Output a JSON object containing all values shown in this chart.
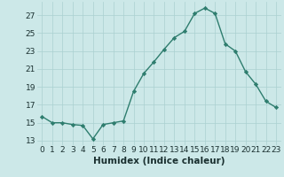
{
  "x": [
    0,
    1,
    2,
    3,
    4,
    5,
    6,
    7,
    8,
    9,
    10,
    11,
    12,
    13,
    14,
    15,
    16,
    17,
    18,
    19,
    20,
    21,
    22,
    23
  ],
  "y": [
    15.7,
    15.0,
    15.0,
    14.8,
    14.7,
    13.2,
    14.8,
    15.0,
    15.2,
    18.5,
    20.5,
    21.8,
    23.2,
    24.5,
    25.2,
    27.2,
    27.8,
    27.2,
    23.8,
    23.0,
    20.7,
    19.3,
    17.4,
    16.7
  ],
  "line_color": "#2e7d6e",
  "marker": "D",
  "marker_size": 2.2,
  "bg_color": "#cce8e8",
  "grid_color": "#aad0d0",
  "xlabel": "Humidex (Indice chaleur)",
  "xlim": [
    -0.5,
    23.5
  ],
  "ylim": [
    12.5,
    28.5
  ],
  "yticks": [
    13,
    15,
    17,
    19,
    21,
    23,
    25,
    27
  ],
  "xticks": [
    0,
    1,
    2,
    3,
    4,
    5,
    6,
    7,
    8,
    9,
    10,
    11,
    12,
    13,
    14,
    15,
    16,
    17,
    18,
    19,
    20,
    21,
    22,
    23
  ],
  "xlabel_fontsize": 7.5,
  "tick_fontsize": 6.5,
  "line_width": 1.0
}
